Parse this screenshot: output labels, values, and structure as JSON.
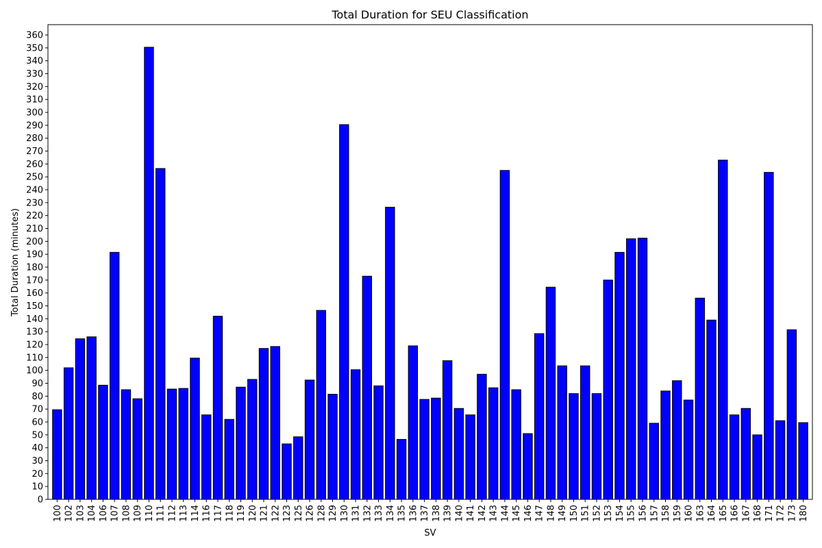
{
  "chart_data": {
    "type": "bar",
    "title": "Total Duration for SEU Classification",
    "xlabel": "SV",
    "ylabel": "Total Duration (minutes)",
    "ylim": [
      0,
      368
    ],
    "ytick_step": 10,
    "grid": false,
    "bar_color": "#0000ff",
    "bar_edge_color": "#000000",
    "categories": [
      "100",
      "102",
      "103",
      "104",
      "106",
      "107",
      "108",
      "109",
      "110",
      "111",
      "112",
      "113",
      "114",
      "116",
      "117",
      "118",
      "119",
      "120",
      "121",
      "122",
      "123",
      "125",
      "126",
      "128",
      "129",
      "130",
      "131",
      "132",
      "133",
      "134",
      "135",
      "136",
      "137",
      "138",
      "139",
      "140",
      "141",
      "142",
      "143",
      "144",
      "145",
      "146",
      "147",
      "148",
      "149",
      "150",
      "151",
      "152",
      "153",
      "154",
      "155",
      "156",
      "157",
      "158",
      "159",
      "160",
      "163",
      "164",
      "165",
      "166",
      "167",
      "168",
      "171",
      "172",
      "173",
      "180"
    ],
    "values": [
      69.5,
      102,
      124.5,
      126,
      88.5,
      191.5,
      85,
      78,
      350.5,
      256.5,
      85.5,
      86,
      109.5,
      65.5,
      142,
      62,
      87,
      93,
      117,
      118.5,
      43,
      48.5,
      92.5,
      146.5,
      81.5,
      290.5,
      100.5,
      173,
      88,
      226.5,
      46.5,
      119,
      77.5,
      78.5,
      107.5,
      70.5,
      65.5,
      97,
      86.5,
      255,
      85,
      51,
      128.5,
      164.5,
      103.5,
      82,
      103.5,
      82,
      170,
      191.5,
      202,
      202.5,
      59,
      84,
      92,
      77,
      156,
      139,
      263,
      65.5,
      70.5,
      50,
      253.5,
      61,
      131.5,
      59.5
    ]
  }
}
